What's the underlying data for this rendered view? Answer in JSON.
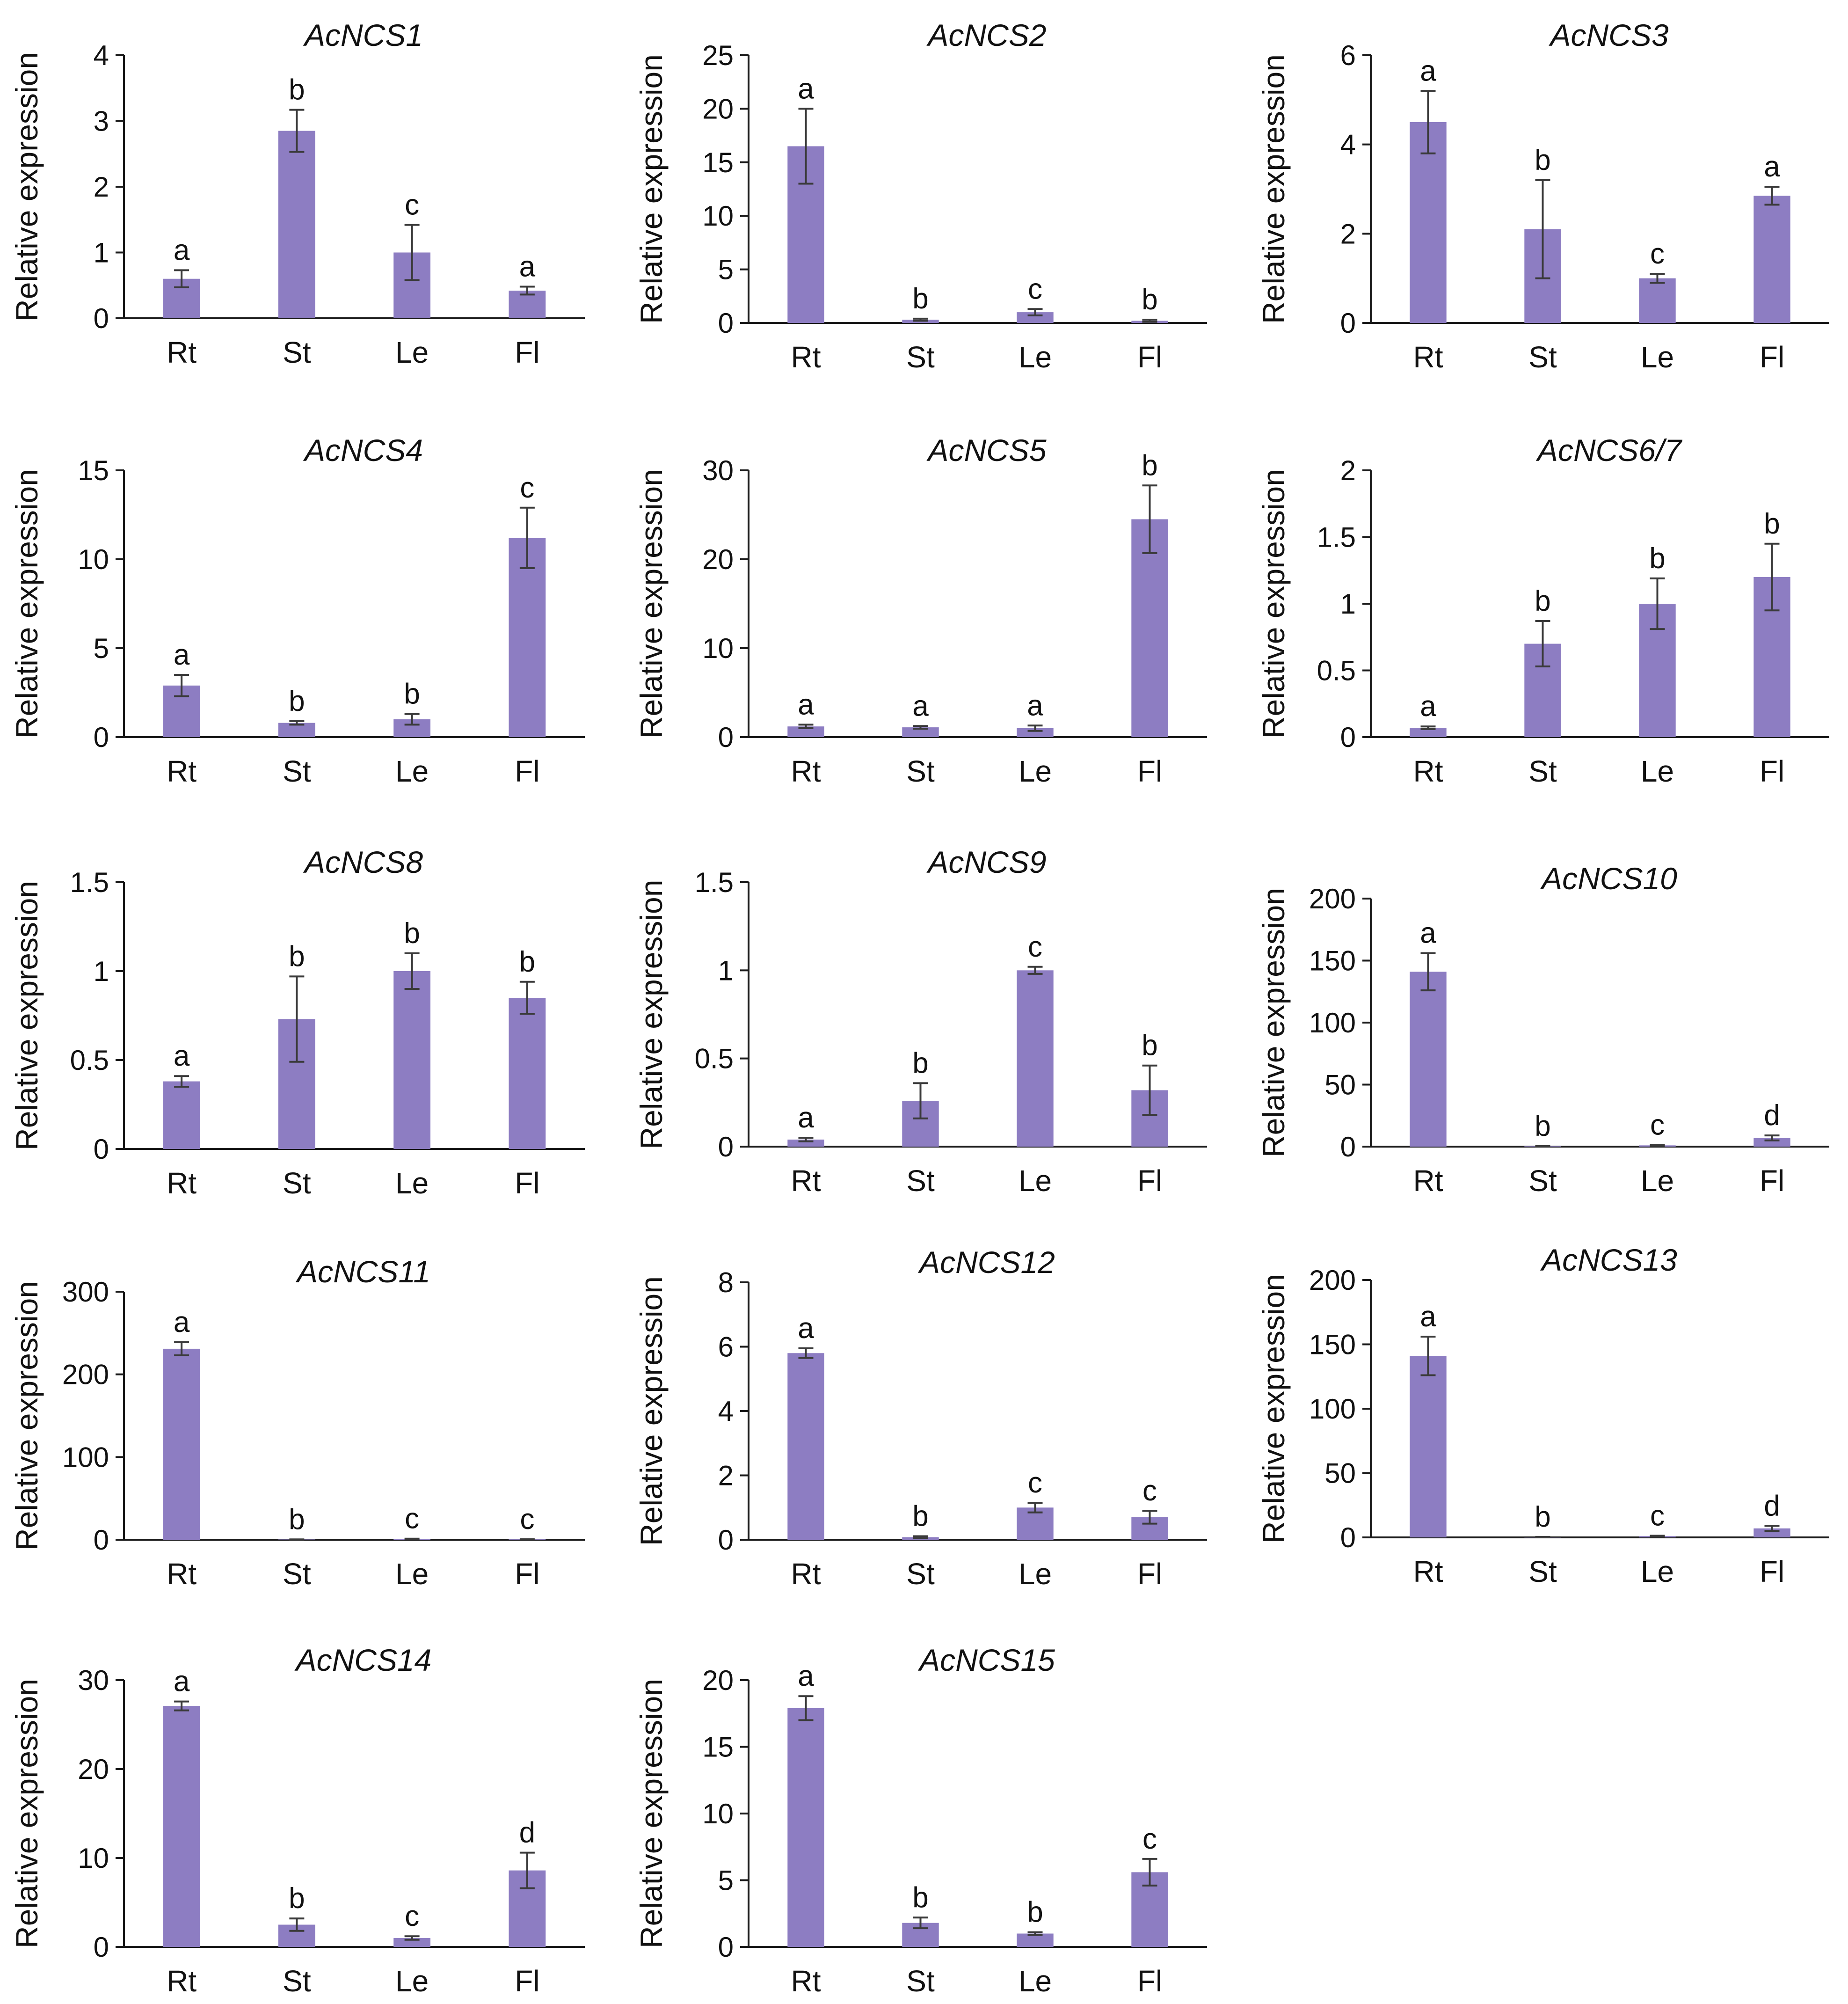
{
  "colors": {
    "bar": "#8d7dc2",
    "axis": "#1a1a1a",
    "error_bar": "#3a3a3a",
    "text": "#111111"
  },
  "chart_data": [
    {
      "type": "bar",
      "title": "AcNCS1",
      "ylabel": "Relative expression",
      "xlabel": "",
      "categories": [
        "Rt",
        "St",
        "Le",
        "Fl"
      ],
      "ylim": [
        0,
        4
      ],
      "yticks": [
        "0",
        "1",
        "2",
        "3",
        "4"
      ],
      "values": [
        0.6,
        2.85,
        1.0,
        0.42
      ],
      "errors": [
        0.13,
        0.32,
        0.42,
        0.06
      ],
      "significance": [
        "a",
        "b",
        "c",
        "a"
      ]
    },
    {
      "type": "bar",
      "title": "AcNCS2",
      "ylabel": "Relative expression",
      "xlabel": "",
      "categories": [
        "Rt",
        "St",
        "Le",
        "Fl"
      ],
      "ylim": [
        0,
        25
      ],
      "yticks": [
        "0",
        "5",
        "10",
        "15",
        "20",
        "25"
      ],
      "values": [
        16.5,
        0.3,
        1.0,
        0.2
      ],
      "errors": [
        3.5,
        0.1,
        0.3,
        0.1
      ],
      "significance": [
        "a",
        "b",
        "c",
        "b"
      ]
    },
    {
      "type": "bar",
      "title": "AcNCS3",
      "ylabel": "Relative expression",
      "xlabel": "",
      "categories": [
        "Rt",
        "St",
        "Le",
        "Fl"
      ],
      "ylim": [
        0,
        6
      ],
      "yticks": [
        "0",
        "2",
        "4",
        "6"
      ],
      "values": [
        4.5,
        2.1,
        1.0,
        2.85
      ],
      "errors": [
        0.7,
        1.1,
        0.1,
        0.2
      ],
      "significance": [
        "a",
        "b",
        "c",
        "a"
      ]
    },
    {
      "type": "bar",
      "title": "AcNCS4",
      "ylabel": "Relative expression",
      "xlabel": "",
      "categories": [
        "Rt",
        "St",
        "Le",
        "Fl"
      ],
      "ylim": [
        0,
        15
      ],
      "yticks": [
        "0",
        "5",
        "10",
        "15"
      ],
      "values": [
        2.9,
        0.8,
        1.0,
        11.2
      ],
      "errors": [
        0.6,
        0.1,
        0.3,
        1.7
      ],
      "significance": [
        "a",
        "b",
        "b",
        "c"
      ]
    },
    {
      "type": "bar",
      "title": "AcNCS5",
      "ylabel": "Relative expression",
      "xlabel": "",
      "categories": [
        "Rt",
        "St",
        "Le",
        "Fl"
      ],
      "ylim": [
        0,
        30
      ],
      "yticks": [
        "0",
        "10",
        "20",
        "30"
      ],
      "values": [
        1.2,
        1.1,
        1.0,
        24.5
      ],
      "errors": [
        0.2,
        0.15,
        0.3,
        3.8
      ],
      "significance": [
        "a",
        "a",
        "a",
        "b"
      ]
    },
    {
      "type": "bar",
      "title": "AcNCS6/7",
      "ylabel": "Relative expression",
      "xlabel": "",
      "categories": [
        "Rt",
        "St",
        "Le",
        "Fl"
      ],
      "ylim": [
        0,
        2
      ],
      "yticks": [
        "0",
        "0.5",
        "1",
        "1.5",
        "2"
      ],
      "values": [
        0.07,
        0.7,
        1.0,
        1.2
      ],
      "errors": [
        0.01,
        0.17,
        0.19,
        0.25
      ],
      "significance": [
        "a",
        "b",
        "b",
        "b"
      ]
    },
    {
      "type": "bar",
      "title": "AcNCS8",
      "ylabel": "Relative expression",
      "xlabel": "",
      "categories": [
        "Rt",
        "St",
        "Le",
        "Fl"
      ],
      "ylim": [
        0,
        1.5
      ],
      "yticks": [
        "0",
        "0.5",
        "1",
        "1.5"
      ],
      "values": [
        0.38,
        0.73,
        1.0,
        0.85
      ],
      "errors": [
        0.03,
        0.24,
        0.1,
        0.09
      ],
      "significance": [
        "a",
        "b",
        "b",
        "b"
      ]
    },
    {
      "type": "bar",
      "title": "AcNCS9",
      "ylabel": "Relative expression",
      "xlabel": "",
      "categories": [
        "Rt",
        "St",
        "Le",
        "Fl"
      ],
      "ylim": [
        0,
        1.5
      ],
      "yticks": [
        "0",
        "0.5",
        "1",
        "1.5"
      ],
      "values": [
        0.04,
        0.26,
        1.0,
        0.32
      ],
      "errors": [
        0.01,
        0.1,
        0.02,
        0.14
      ],
      "significance": [
        "a",
        "b",
        "c",
        "b"
      ]
    },
    {
      "type": "bar",
      "title": "AcNCS10",
      "ylabel": "Relative expression",
      "xlabel": "",
      "categories": [
        "Rt",
        "St",
        "Le",
        "Fl"
      ],
      "ylim": [
        0,
        200
      ],
      "yticks": [
        "0",
        "50",
        "100",
        "150",
        "200"
      ],
      "values": [
        141,
        0.3,
        1.0,
        7
      ],
      "errors": [
        15,
        0.1,
        0.3,
        2
      ],
      "significance": [
        "a",
        "b",
        "c",
        "d"
      ]
    },
    {
      "type": "bar",
      "title": "AcNCS11",
      "ylabel": "Relative expression",
      "xlabel": "",
      "categories": [
        "Rt",
        "St",
        "Le",
        "Fl"
      ],
      "ylim": [
        0,
        300
      ],
      "yticks": [
        "0",
        "100",
        "200",
        "300"
      ],
      "values": [
        231,
        0.3,
        1.0,
        0.5
      ],
      "errors": [
        8,
        0.1,
        0.3,
        0.1
      ],
      "significance": [
        "a",
        "b",
        "c",
        "c"
      ]
    },
    {
      "type": "bar",
      "title": "AcNCS12",
      "ylabel": "Relative expression",
      "xlabel": "",
      "categories": [
        "Rt",
        "St",
        "Le",
        "Fl"
      ],
      "ylim": [
        0,
        8
      ],
      "yticks": [
        "0",
        "2",
        "4",
        "6",
        "8"
      ],
      "values": [
        5.8,
        0.08,
        1.0,
        0.7
      ],
      "errors": [
        0.15,
        0.03,
        0.15,
        0.2
      ],
      "significance": [
        "a",
        "b",
        "c",
        "c"
      ]
    },
    {
      "type": "bar",
      "title": "AcNCS13",
      "ylabel": "Relative expression",
      "xlabel": "",
      "categories": [
        "Rt",
        "St",
        "Le",
        "Fl"
      ],
      "ylim": [
        0,
        200
      ],
      "yticks": [
        "0",
        "50",
        "100",
        "150",
        "200"
      ],
      "values": [
        141,
        0.3,
        1.0,
        7
      ],
      "errors": [
        15,
        0.1,
        0.3,
        2
      ],
      "significance": [
        "a",
        "b",
        "c",
        "d"
      ]
    },
    {
      "type": "bar",
      "title": "AcNCS14",
      "ylabel": "Relative expression",
      "xlabel": "",
      "categories": [
        "Rt",
        "St",
        "Le",
        "Fl"
      ],
      "ylim": [
        0,
        30
      ],
      "yticks": [
        "0",
        "10",
        "20",
        "30"
      ],
      "values": [
        27.1,
        2.5,
        1.0,
        8.6
      ],
      "errors": [
        0.5,
        0.7,
        0.2,
        2
      ],
      "significance": [
        "a",
        "b",
        "c",
        "d"
      ]
    },
    {
      "type": "bar",
      "title": "AcNCS15",
      "ylabel": "Relative expression",
      "xlabel": "",
      "categories": [
        "Rt",
        "St",
        "Le",
        "Fl"
      ],
      "ylim": [
        0,
        20
      ],
      "yticks": [
        "0",
        "5",
        "10",
        "15",
        "20"
      ],
      "values": [
        17.9,
        1.8,
        1.0,
        5.6
      ],
      "errors": [
        0.9,
        0.4,
        0.1,
        1
      ],
      "significance": [
        "a",
        "b",
        "b",
        "c"
      ]
    }
  ]
}
